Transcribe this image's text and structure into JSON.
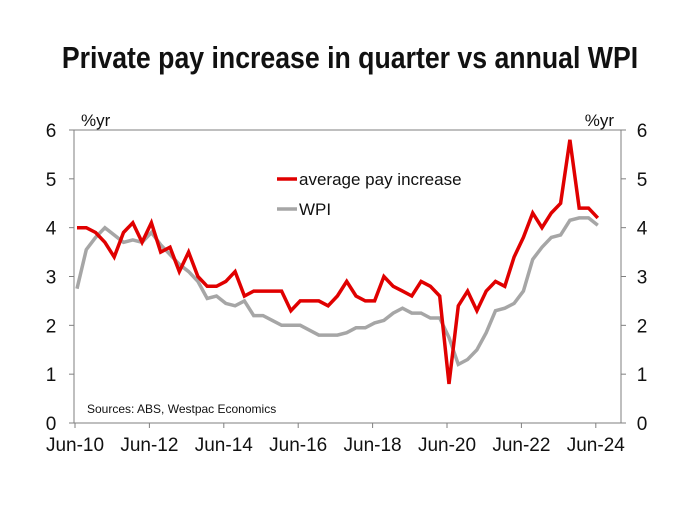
{
  "chart_data": {
    "type": "line",
    "title": "Private pay increase in quarter vs annual WPI",
    "xlabel": "",
    "ylabel_left": "%yr",
    "ylabel_right": "%yr",
    "ylim": [
      0,
      6
    ],
    "yticks": [
      "0",
      "1",
      "2",
      "3",
      "4",
      "5",
      "6"
    ],
    "xticks": [
      "Jun-10",
      "Jun-12",
      "Jun-14",
      "Jun-16",
      "Jun-18",
      "Jun-20",
      "Jun-22",
      "Jun-24"
    ],
    "x_period": "quarterly, Jun-10 to Jun-24",
    "grid": false,
    "legend_position": "upper-center",
    "source": "Sources: ABS, Westpac Economics",
    "series": [
      {
        "name": "average pay increase",
        "color": "#e00000",
        "values": [
          4.0,
          4.0,
          3.9,
          3.7,
          3.4,
          3.9,
          4.1,
          3.7,
          4.1,
          3.5,
          3.6,
          3.1,
          3.5,
          3.0,
          2.8,
          2.8,
          2.9,
          3.1,
          2.6,
          2.7,
          2.7,
          2.7,
          2.7,
          2.3,
          2.5,
          2.5,
          2.5,
          2.4,
          2.6,
          2.9,
          2.6,
          2.5,
          2.5,
          3.0,
          2.8,
          2.7,
          2.6,
          2.9,
          2.8,
          2.6,
          0.8,
          2.4,
          2.7,
          2.3,
          2.7,
          2.9,
          2.8,
          3.4,
          3.8,
          4.3,
          4.0,
          4.3,
          4.5,
          5.8,
          4.4,
          4.4,
          4.2
        ]
      },
      {
        "name": "WPI",
        "color": "#a6a6a6",
        "values": [
          2.75,
          3.55,
          3.8,
          4.0,
          3.85,
          3.7,
          3.75,
          3.7,
          3.9,
          3.65,
          3.45,
          3.25,
          3.1,
          2.9,
          2.55,
          2.6,
          2.45,
          2.4,
          2.5,
          2.2,
          2.2,
          2.1,
          2.0,
          2.0,
          2.0,
          1.9,
          1.8,
          1.8,
          1.8,
          1.85,
          1.95,
          1.95,
          2.05,
          2.1,
          2.25,
          2.35,
          2.25,
          2.25,
          2.15,
          2.15,
          1.75,
          1.2,
          1.3,
          1.5,
          1.85,
          2.3,
          2.35,
          2.45,
          2.7,
          3.35,
          3.6,
          3.8,
          3.85,
          4.15,
          4.2,
          4.2,
          4.05
        ]
      }
    ]
  }
}
